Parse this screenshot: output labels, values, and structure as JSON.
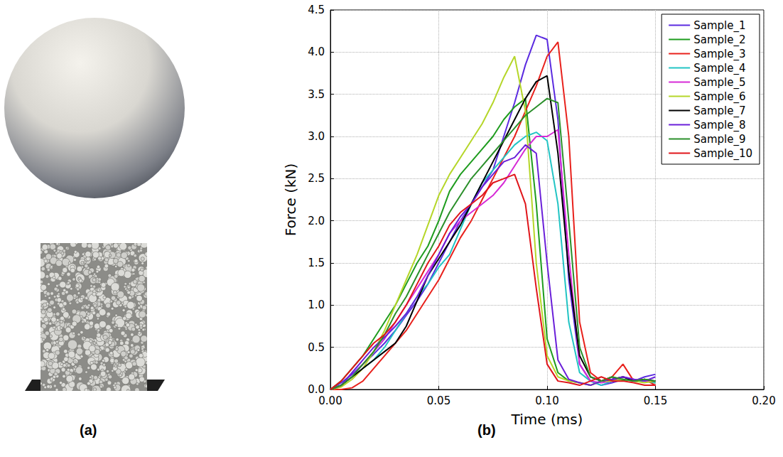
{
  "figure": {
    "panel_labels": [
      "(a)",
      "(b)"
    ]
  },
  "chart_data": {
    "type": "line",
    "x_label": "Time (ms)",
    "y_label": "Force (kN)",
    "xlim": [
      0,
      0.2
    ],
    "xticks": [
      {
        "value": 0,
        "label": "0.00"
      },
      {
        "value": 0.05,
        "label": "0.05"
      },
      {
        "value": 0.1,
        "label": "0.10"
      },
      {
        "value": 0.15,
        "label": "0.15"
      },
      {
        "value": 0.2,
        "label": "0.20"
      }
    ],
    "ylim": [
      0,
      4.5
    ],
    "yticks": [
      {
        "value": 0,
        "label": "0.0"
      },
      0.5,
      {
        "value": 1,
        "label": "1.0"
      },
      1.5,
      {
        "value": 2,
        "label": "2.0"
      },
      2.5,
      {
        "value": 3,
        "label": "3.0"
      },
      3.5,
      {
        "value": 4,
        "label": "4.0"
      },
      4.5
    ],
    "grid": true,
    "legend": "top-right",
    "x": [
      0,
      0.005,
      0.01,
      0.015,
      0.02,
      0.025,
      0.03,
      0.035,
      0.04,
      0.045,
      0.05,
      0.055,
      0.06,
      0.065,
      0.07,
      0.075,
      0.08,
      0.085,
      0.09,
      0.095,
      0.1,
      0.105,
      0.11,
      0.115,
      0.12,
      0.125,
      0.13,
      0.135,
      0.14,
      0.145,
      0.15
    ],
    "series": [
      {
        "name": "Sample_1",
        "color": "#5b2be0",
        "values": [
          0,
          0.08,
          0.18,
          0.3,
          0.42,
          0.55,
          0.7,
          0.88,
          1.05,
          1.25,
          1.5,
          1.75,
          2.0,
          2.2,
          2.4,
          2.6,
          3.0,
          3.4,
          3.85,
          4.2,
          4.15,
          3.2,
          1.3,
          0.3,
          0.1,
          0.05,
          0.08,
          0.12,
          0.1,
          0.15,
          0.18
        ]
      },
      {
        "name": "Sample_2",
        "color": "#1e9c1e",
        "values": [
          0,
          0.1,
          0.25,
          0.4,
          0.6,
          0.8,
          1.0,
          1.25,
          1.5,
          1.7,
          2.0,
          2.35,
          2.55,
          2.7,
          2.85,
          3.0,
          3.2,
          3.35,
          3.45,
          2.2,
          0.6,
          0.2,
          0.1,
          0.08,
          0.05,
          0.1,
          0.15,
          0.1,
          0.12,
          0.1,
          0.08
        ]
      },
      {
        "name": "Sample_3",
        "color": "#e8211c",
        "values": [
          0,
          0,
          0.02,
          0.1,
          0.25,
          0.4,
          0.55,
          0.7,
          0.9,
          1.1,
          1.3,
          1.55,
          1.8,
          2.0,
          2.25,
          2.5,
          2.75,
          3.0,
          3.3,
          3.6,
          3.95,
          4.12,
          3.0,
          0.8,
          0.2,
          0.1,
          0.15,
          0.3,
          0.1,
          0.12,
          0.05
        ]
      },
      {
        "name": "Sample_4",
        "color": "#22c4c4",
        "values": [
          0,
          0.05,
          0.15,
          0.25,
          0.35,
          0.5,
          0.7,
          0.9,
          1.1,
          1.25,
          1.45,
          1.6,
          1.9,
          2.2,
          2.45,
          2.6,
          2.75,
          2.9,
          3.0,
          3.05,
          2.95,
          2.2,
          0.8,
          0.2,
          0.1,
          0.05,
          0.1,
          0.12,
          0.1,
          0.1,
          0.08
        ]
      },
      {
        "name": "Sample_5",
        "color": "#d62ad6",
        "values": [
          0,
          0.05,
          0.15,
          0.3,
          0.45,
          0.6,
          0.8,
          1.0,
          1.2,
          1.4,
          1.6,
          1.85,
          2.0,
          2.1,
          2.2,
          2.3,
          2.45,
          2.65,
          2.85,
          3.0,
          3.0,
          3.08,
          1.6,
          0.3,
          0.1,
          0.08,
          0.1,
          0.15,
          0.12,
          0.1,
          0.1
        ]
      },
      {
        "name": "Sample_6",
        "color": "#b5d629",
        "values": [
          0,
          0.03,
          0.12,
          0.25,
          0.45,
          0.7,
          1.0,
          1.3,
          1.6,
          1.95,
          2.3,
          2.55,
          2.75,
          2.95,
          3.15,
          3.4,
          3.7,
          3.95,
          3.3,
          1.5,
          0.4,
          0.15,
          0.1,
          0.08,
          0.05,
          0.1,
          0.1,
          0.12,
          0.1,
          0.08,
          0.1
        ]
      },
      {
        "name": "Sample_7",
        "color": "#000000",
        "values": [
          0,
          0.05,
          0.15,
          0.25,
          0.35,
          0.45,
          0.55,
          0.75,
          1.05,
          1.35,
          1.55,
          1.75,
          1.95,
          2.2,
          2.45,
          2.7,
          2.95,
          3.2,
          3.45,
          3.65,
          3.72,
          2.8,
          1.4,
          0.4,
          0.15,
          0.1,
          0.12,
          0.15,
          0.1,
          0.12,
          0.1
        ]
      },
      {
        "name": "Sample_8",
        "color": "#6a1fd9",
        "values": [
          0,
          0.05,
          0.2,
          0.35,
          0.5,
          0.62,
          0.75,
          0.9,
          1.1,
          1.35,
          1.6,
          1.85,
          2.05,
          2.2,
          2.4,
          2.55,
          2.7,
          2.75,
          2.9,
          2.8,
          1.5,
          0.35,
          0.12,
          0.08,
          0.05,
          0.1,
          0.12,
          0.15,
          0.12,
          0.1,
          0.15
        ]
      },
      {
        "name": "Sample_9",
        "color": "#2a8f2a",
        "values": [
          0,
          0.05,
          0.15,
          0.3,
          0.45,
          0.65,
          0.9,
          1.1,
          1.35,
          1.6,
          1.85,
          2.1,
          2.3,
          2.5,
          2.65,
          2.8,
          2.95,
          3.1,
          3.25,
          3.35,
          3.45,
          3.4,
          2.0,
          0.5,
          0.15,
          0.1,
          0.15,
          0.12,
          0.1,
          0.12,
          0.1
        ]
      },
      {
        "name": "Sample_10",
        "color": "#e0151a",
        "values": [
          0,
          0.1,
          0.25,
          0.4,
          0.55,
          0.65,
          0.8,
          1.0,
          1.25,
          1.5,
          1.7,
          1.95,
          2.1,
          2.2,
          2.3,
          2.45,
          2.5,
          2.55,
          2.2,
          1.2,
          0.3,
          0.1,
          0.08,
          0.05,
          0.1,
          0.15,
          0.1,
          0.1,
          0.08,
          0.05,
          0.05
        ]
      }
    ]
  }
}
